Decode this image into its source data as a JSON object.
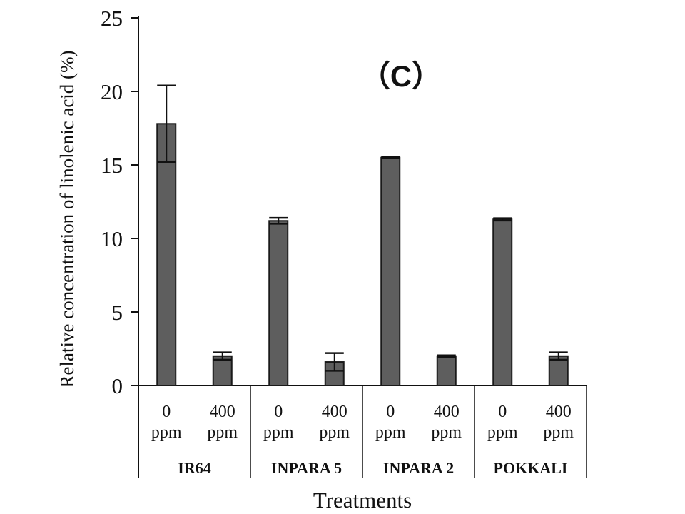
{
  "chart_data": {
    "type": "bar",
    "panel_label": "（C）",
    "title": "",
    "ylabel": "Relative concentration of linolenic acid (%)",
    "xlabel": "Treatments",
    "ylim": [
      0,
      25
    ],
    "yticks": [
      "0",
      "5",
      "10",
      "15",
      "20",
      "25"
    ],
    "ytick_values": [
      0,
      5,
      10,
      15,
      20,
      25
    ],
    "groups": [
      "IR64",
      "INPARA 5",
      "INPARA 2",
      "POKKALI"
    ],
    "categories": [
      {
        "group": "IR64",
        "line1": "0",
        "line2": "ppm"
      },
      {
        "group": "IR64",
        "line1": "400",
        "line2": "ppm"
      },
      {
        "group": "INPARA 5",
        "line1": "0",
        "line2": "ppm"
      },
      {
        "group": "INPARA 5",
        "line1": "400",
        "line2": "ppm"
      },
      {
        "group": "INPARA 2",
        "line1": "0",
        "line2": "ppm"
      },
      {
        "group": "INPARA 2",
        "line1": "400",
        "line2": "ppm"
      },
      {
        "group": "POKKALI",
        "line1": "0",
        "line2": "ppm"
      },
      {
        "group": "POKKALI",
        "line1": "400",
        "line2": "ppm"
      }
    ],
    "values": [
      17.8,
      2.0,
      11.2,
      1.6,
      15.5,
      2.0,
      11.3,
      2.0
    ],
    "errors": [
      2.6,
      0.25,
      0.2,
      0.6,
      0.05,
      0.05,
      0.08,
      0.25
    ],
    "bar_color": "#5e5e5e",
    "axis_color": "#111111",
    "text_color": "#111111"
  }
}
